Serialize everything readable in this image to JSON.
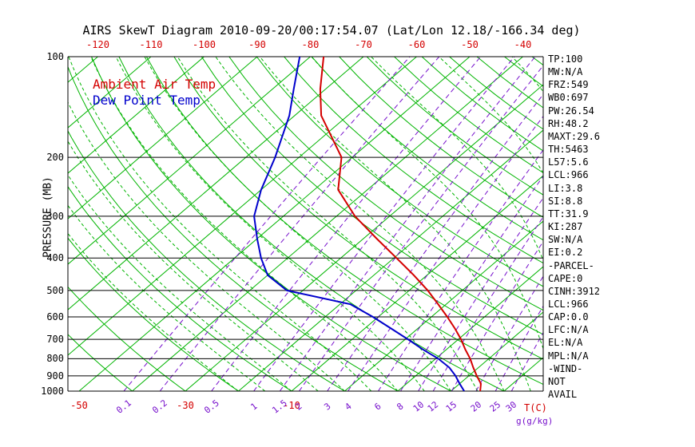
{
  "title": "AIRS SkewT Diagram 2010-09-20/00:17:54.07 (Lat/Lon 12.18/-166.34 deg)",
  "legend": {
    "ambient": "Ambient Air Temp",
    "dew_point": "Dew Point Temp"
  },
  "axes": {
    "y_label": "PRESSURE (MB)",
    "pressure_ticks": [
      100,
      200,
      300,
      400,
      500,
      600,
      700,
      800,
      900,
      1000
    ],
    "top_temp_ticks": [
      -120,
      -110,
      -100,
      -90,
      -80,
      -70,
      -60,
      -50,
      -40
    ],
    "bottom_temp_ticks": [
      -50,
      -30,
      -10
    ],
    "mixing_ratio_ticks": [
      0.1,
      0.2,
      0.5,
      1,
      1.5,
      2,
      3,
      4,
      6,
      8,
      10,
      12,
      15,
      20,
      25,
      30
    ],
    "bottom_right_temp_label": "T(C)",
    "bottom_right_mix_label": "g(g/kg)"
  },
  "indices_panel": [
    "TP:100",
    "MW:N/A",
    "FRZ:549",
    "WB0:697",
    "PW:26.54",
    "RH:48.2",
    "MAXT:29.6",
    "TH:5463",
    "L57:5.6",
    "LCL:966",
    "LI:3.8",
    "SI:8.8",
    "TT:31.9",
    "KI:287",
    "SW:N/A",
    "EI:0.2",
    "-PARCEL-",
    "CAPE:0",
    "CINH:3912",
    "LCL:966",
    "CAP:0.0",
    "LFC:N/A",
    "EL:N/A",
    "MPL:N/A",
    "-WIND-",
    "NOT",
    "AVAIL"
  ],
  "colors": {
    "background_green": "#00b400",
    "mixing_purple": "#7711cc",
    "temp_red": "#d40000",
    "dew_blue": "#0000cc",
    "grid_black": "#000000"
  },
  "chart_data": {
    "type": "line",
    "title": "AIRS SkewT Diagram",
    "x_axis_label": "T(C)",
    "y_axis_label": "PRESSURE (MB)",
    "y_scale": "log",
    "pressure_range_mb": [
      100,
      1000
    ],
    "top_axis_temp_range_c": [
      -120,
      -40
    ],
    "isotherms": {
      "min": -160,
      "max": 40,
      "step": 10
    },
    "dry_adiabats": {
      "min": -40,
      "max": 180,
      "step": 10
    },
    "moist_adiabats": {
      "min": -20,
      "max": 55,
      "step": 5
    },
    "mixing_ratio_lines": [
      0.1,
      0.2,
      0.5,
      1,
      1.5,
      2,
      3,
      4,
      6,
      8,
      10,
      12,
      15,
      20,
      25,
      30
    ],
    "series": [
      {
        "name": "Ambient Air Temp",
        "color_key": "temp_red",
        "points_p_t": [
          [
            1000,
            25.5
          ],
          [
            950,
            24
          ],
          [
            900,
            21.5
          ],
          [
            850,
            19
          ],
          [
            800,
            16.5
          ],
          [
            750,
            13.5
          ],
          [
            700,
            10.5
          ],
          [
            650,
            7
          ],
          [
            600,
            3
          ],
          [
            550,
            -1.5
          ],
          [
            500,
            -6.5
          ],
          [
            450,
            -12.5
          ],
          [
            400,
            -19.5
          ],
          [
            350,
            -27.5
          ],
          [
            300,
            -36.5
          ],
          [
            250,
            -45.5
          ],
          [
            200,
            -52
          ],
          [
            150,
            -65
          ],
          [
            125,
            -71
          ],
          [
            100,
            -77.5
          ]
        ]
      },
      {
        "name": "Dew Point Temp",
        "color_key": "dew_blue",
        "points_p_t": [
          [
            1000,
            22.5
          ],
          [
            950,
            20
          ],
          [
            900,
            17.5
          ],
          [
            850,
            14.5
          ],
          [
            800,
            10.5
          ],
          [
            750,
            5.5
          ],
          [
            700,
            0.5
          ],
          [
            650,
            -5
          ],
          [
            600,
            -11
          ],
          [
            550,
            -18
          ],
          [
            500,
            -33
          ],
          [
            450,
            -40
          ],
          [
            400,
            -45
          ],
          [
            350,
            -50
          ],
          [
            300,
            -55.5
          ],
          [
            250,
            -60
          ],
          [
            200,
            -64.5
          ],
          [
            150,
            -71
          ],
          [
            125,
            -76
          ],
          [
            100,
            -82
          ]
        ]
      }
    ]
  }
}
